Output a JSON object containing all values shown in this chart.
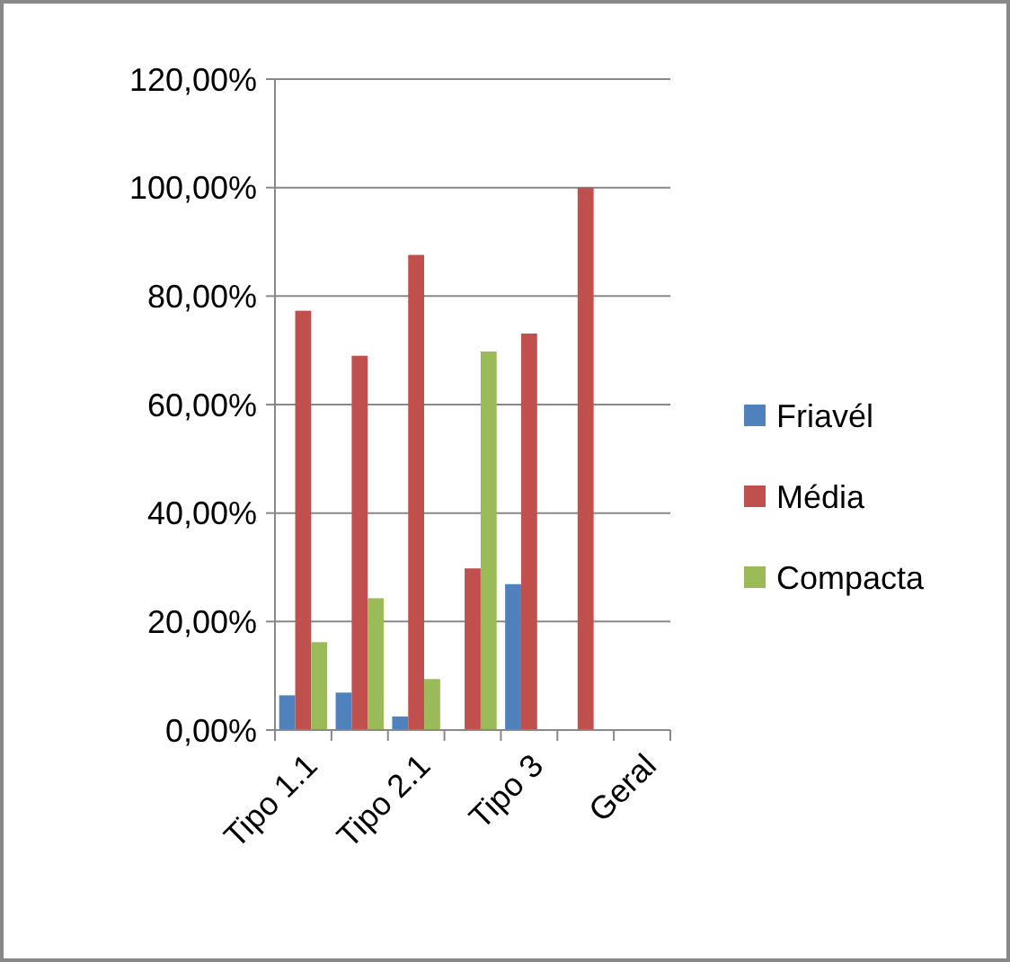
{
  "chart_data": {
    "type": "bar",
    "categories": [
      "Tipo 1.1",
      null,
      "Tipo 2.1",
      null,
      "Tipo 3",
      null,
      "Geral"
    ],
    "series": [
      {
        "name": "Friavél",
        "color": "#4f81bd",
        "values": [
          6.4,
          6.9,
          2.5,
          null,
          26.9,
          null,
          null
        ]
      },
      {
        "name": "Média",
        "color": "#c0504d",
        "values": [
          77.3,
          69.0,
          87.6,
          29.8,
          73.1,
          100,
          null
        ]
      },
      {
        "name": "Compacta",
        "color": "#9bbb59",
        "values": [
          16.2,
          24.3,
          9.4,
          69.8,
          null,
          null,
          null
        ]
      }
    ],
    "ylim": [
      0,
      120
    ],
    "yticks": [
      {
        "value": 0,
        "label": "0,00%"
      },
      {
        "value": 20,
        "label": "20,00%"
      },
      {
        "value": 40,
        "label": "40,00%"
      },
      {
        "value": 60,
        "label": "60,00%"
      },
      {
        "value": 80,
        "label": "80,00%"
      },
      {
        "value": 100,
        "label": "100,00%"
      },
      {
        "value": 120,
        "label": "120,00%"
      }
    ],
    "grid": "y",
    "legend": "right"
  }
}
